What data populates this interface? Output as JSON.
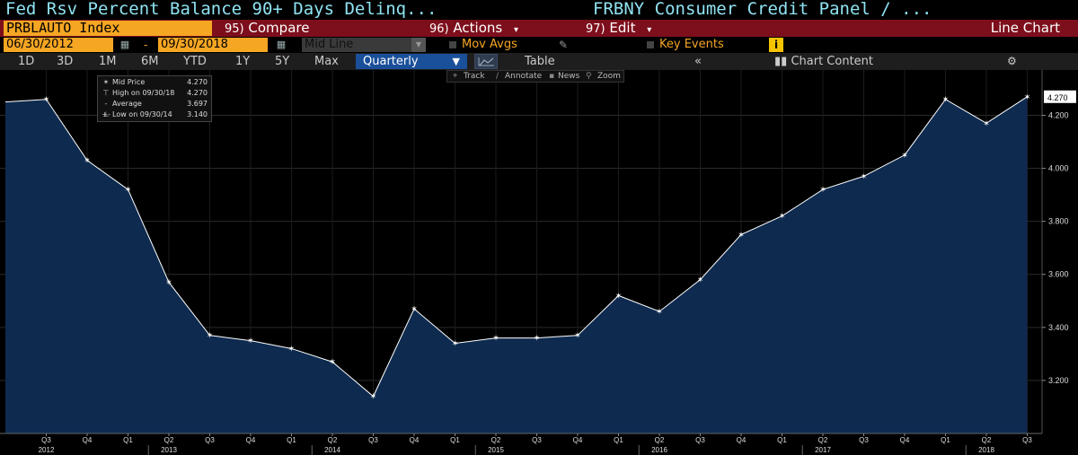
{
  "title_bar": {
    "left": "Fed Rsv Percent Balance 90+ Days Delinq...",
    "right": "FRBNY Consumer Credit Panel / ..."
  },
  "menu_bar": {
    "ticker": "PRBLAUTO Index",
    "compare": {
      "num": "95)",
      "label": "Compare"
    },
    "actions": {
      "num": "96)",
      "label": "Actions"
    },
    "edit": {
      "num": "97)",
      "label": "Edit"
    },
    "chart_type": "Line Chart"
  },
  "date_row": {
    "start_date": "06/30/2012",
    "end_date": "09/30/2018",
    "dash": "-",
    "price_field": "Mid Line",
    "mov_avgs": "Mov Avgs",
    "key_events": "Key Events",
    "info": "i"
  },
  "toolbar": {
    "ranges": [
      "1D",
      "3D",
      "1M",
      "6M",
      "YTD",
      "1Y",
      "5Y",
      "Max"
    ],
    "period": "Quarterly",
    "table": "Table",
    "collapse": "«",
    "chart_content": "Chart Content"
  },
  "chart_tools": {
    "track": "Track",
    "annotate": "Annotate",
    "news": "News",
    "zoom": "Zoom"
  },
  "legend": {
    "mid_price_label": "Mid Price",
    "mid_price_value": "4.270",
    "high_label": "High on 09/30/18",
    "high_value": "4.270",
    "average_label": "Average",
    "average_value": "3.697",
    "low_label": "Low on 09/30/14",
    "low_value": "3.140"
  },
  "colors": {
    "fill": "#0e2a4f",
    "plot_bg": "#000000",
    "line": "#ffffff",
    "menu_bar": "#7d0e1b",
    "accent": "#f5a623",
    "title_text": "#8fe3f2"
  },
  "chart_data": {
    "type": "area",
    "series": [
      {
        "values": [
          4.25,
          4.26,
          4.03,
          3.92,
          3.57,
          3.37,
          3.35,
          3.32,
          3.27,
          3.14,
          3.47,
          3.34,
          3.36,
          3.36,
          3.37,
          3.52,
          3.46,
          3.58,
          3.75,
          3.82,
          3.92,
          3.97,
          4.05,
          4.26,
          4.17,
          4.27
        ]
      }
    ],
    "quarter_ticks": [
      "",
      "Q3",
      "Q4",
      "Q1",
      "Q2",
      "Q3",
      "Q4",
      "Q1",
      "Q2",
      "Q3",
      "Q4",
      "Q1",
      "Q2",
      "Q3",
      "Q4",
      "Q1",
      "Q2",
      "Q3",
      "Q4",
      "Q1",
      "Q2",
      "Q3",
      "Q4",
      "Q1",
      "Q2",
      "Q3"
    ],
    "year_labels": [
      {
        "year": "2012",
        "index": 1
      },
      {
        "year": "2013",
        "index": 4
      },
      {
        "year": "2014",
        "index": 8
      },
      {
        "year": "2015",
        "index": 12
      },
      {
        "year": "2016",
        "index": 16
      },
      {
        "year": "2017",
        "index": 20
      },
      {
        "year": "2018",
        "index": 24
      }
    ],
    "y_ticks": [
      "3.200",
      "3.400",
      "3.600",
      "3.800",
      "4.000",
      "4.200"
    ],
    "ylim": [
      3.0,
      4.32
    ],
    "last_value_label": "4.270",
    "grid": true
  }
}
